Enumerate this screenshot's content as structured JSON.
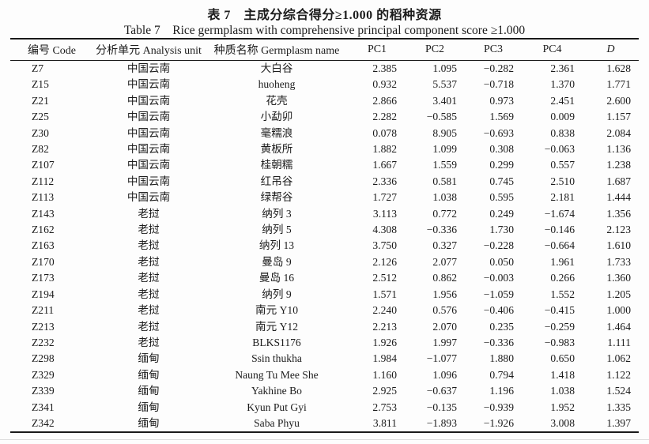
{
  "table": {
    "title_zh": "表 7　主成分综合得分≥1.000 的稻种资源",
    "title_en": "Table 7　Rice germplasm with comprehensive principal component score ≥1.000",
    "columns": [
      {
        "key": "code",
        "label": "编号 Code"
      },
      {
        "key": "unit",
        "label": "分析单元 Analysis unit"
      },
      {
        "key": "name",
        "label": "种质名称 Germplasm name"
      },
      {
        "key": "pc1",
        "label": "PC1"
      },
      {
        "key": "pc2",
        "label": "PC2"
      },
      {
        "key": "pc3",
        "label": "PC3"
      },
      {
        "key": "pc4",
        "label": "PC4"
      },
      {
        "key": "d",
        "label": "D",
        "italic": true
      }
    ],
    "rows": [
      [
        "Z7",
        "中国云南",
        "大白谷",
        "2.385",
        "1.095",
        "−0.282",
        "2.361",
        "1.628"
      ],
      [
        "Z15",
        "中国云南",
        "huoheng",
        "0.932",
        "5.537",
        "−0.718",
        "1.370",
        "1.771"
      ],
      [
        "Z21",
        "中国云南",
        "花壳",
        "2.866",
        "3.401",
        "0.973",
        "2.451",
        "2.600"
      ],
      [
        "Z25",
        "中国云南",
        "小勐卯",
        "2.282",
        "−0.585",
        "1.569",
        "0.009",
        "1.157"
      ],
      [
        "Z30",
        "中国云南",
        "毫糯浪",
        "0.078",
        "8.905",
        "−0.693",
        "0.838",
        "2.084"
      ],
      [
        "Z82",
        "中国云南",
        "黄板所",
        "1.882",
        "1.099",
        "0.308",
        "−0.063",
        "1.136"
      ],
      [
        "Z107",
        "中国云南",
        "桂朝糯",
        "1.667",
        "1.559",
        "0.299",
        "0.557",
        "1.238"
      ],
      [
        "Z112",
        "中国云南",
        "红吊谷",
        "2.336",
        "0.581",
        "0.745",
        "2.510",
        "1.687"
      ],
      [
        "Z113",
        "中国云南",
        "绿帮谷",
        "1.727",
        "1.038",
        "0.595",
        "2.181",
        "1.444"
      ],
      [
        "Z143",
        "老挝",
        "纳列 3",
        "3.113",
        "0.772",
        "0.249",
        "−1.674",
        "1.356"
      ],
      [
        "Z162",
        "老挝",
        "纳列 5",
        "4.308",
        "−0.336",
        "1.730",
        "−0.146",
        "2.123"
      ],
      [
        "Z163",
        "老挝",
        "纳列 13",
        "3.750",
        "0.327",
        "−0.228",
        "−0.664",
        "1.610"
      ],
      [
        "Z170",
        "老挝",
        "曼岛 9",
        "2.126",
        "2.077",
        "0.050",
        "1.961",
        "1.733"
      ],
      [
        "Z173",
        "老挝",
        "曼岛 16",
        "2.512",
        "0.862",
        "−0.003",
        "0.266",
        "1.360"
      ],
      [
        "Z194",
        "老挝",
        "纳列 9",
        "1.571",
        "1.956",
        "−1.059",
        "1.552",
        "1.205"
      ],
      [
        "Z211",
        "老挝",
        "南元 Y10",
        "2.240",
        "0.576",
        "−0.406",
        "−0.415",
        "1.000"
      ],
      [
        "Z213",
        "老挝",
        "南元 Y12",
        "2.213",
        "2.070",
        "0.235",
        "−0.259",
        "1.464"
      ],
      [
        "Z232",
        "老挝",
        "BLKS1176",
        "1.926",
        "1.997",
        "−0.336",
        "−0.983",
        "1.111"
      ],
      [
        "Z298",
        "缅甸",
        "Ssin thukha",
        "1.984",
        "−1.077",
        "1.880",
        "0.650",
        "1.062"
      ],
      [
        "Z329",
        "缅甸",
        "Naung Tu Mee She",
        "1.160",
        "1.096",
        "0.794",
        "1.418",
        "1.122"
      ],
      [
        "Z339",
        "缅甸",
        "Yakhine Bo",
        "2.925",
        "−0.637",
        "1.196",
        "1.038",
        "1.524"
      ],
      [
        "Z341",
        "缅甸",
        "Kyun Put Gyi",
        "2.753",
        "−0.135",
        "−0.939",
        "1.952",
        "1.335"
      ],
      [
        "Z342",
        "缅甸",
        "Saba Phyu",
        "3.811",
        "−1.893",
        "−1.926",
        "3.008",
        "1.397"
      ]
    ]
  }
}
